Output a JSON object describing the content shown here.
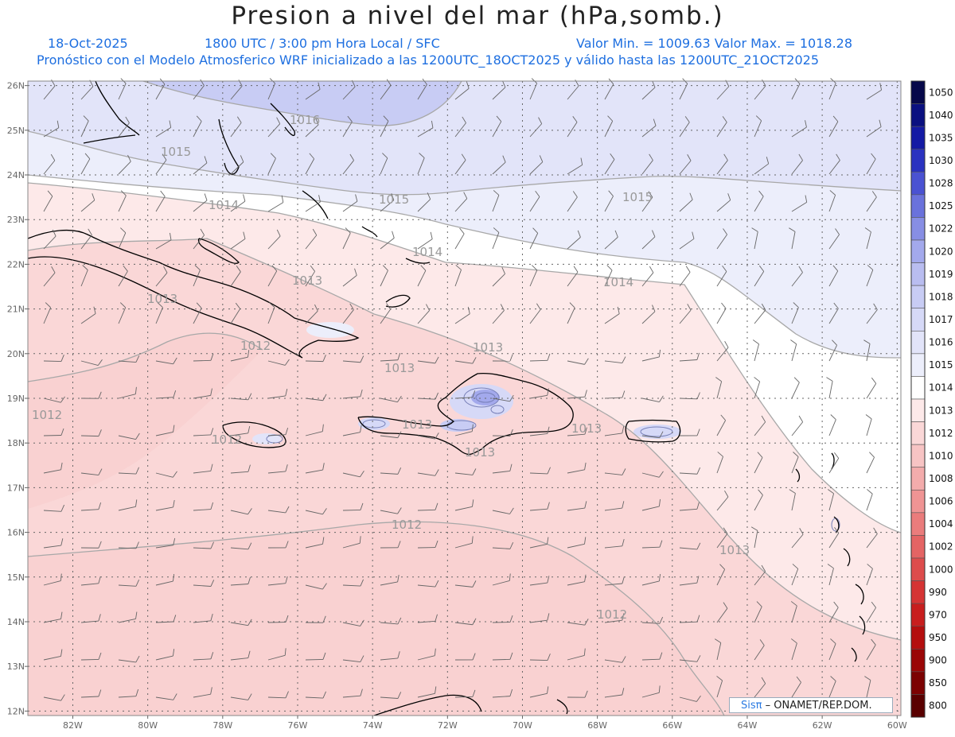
{
  "title": "Presion a nivel del mar (hPa,somb.)",
  "header": {
    "date": "18-Oct-2025",
    "time": "1800 UTC / 3:00 pm Hora Local / SFC",
    "minmax": "Valor Min. = 1009.63  Valor Max. = 1018.28",
    "description": "Pronóstico con el Modelo Atmosferico WRF inicializado a las 1200UTC_18OCT2025 y válido hasta las  1200UTC_21OCT2025"
  },
  "axes": {
    "lat_labels": [
      "26N",
      "25N",
      "24N",
      "23N",
      "22N",
      "21N",
      "20N",
      "19N",
      "18N",
      "17N",
      "16N",
      "15N",
      "14N",
      "13N",
      "12N"
    ],
    "lon_labels": [
      "82W",
      "80W",
      "78W",
      "76W",
      "74W",
      "72W",
      "70W",
      "68W",
      "66W",
      "64W",
      "62W",
      "60W"
    ],
    "lat_values": [
      26,
      25,
      24,
      23,
      22,
      21,
      20,
      19,
      18,
      17,
      16,
      15,
      14,
      13,
      12
    ],
    "lon_values": [
      -82,
      -80,
      -78,
      -76,
      -74,
      -72,
      -70,
      -68,
      -66,
      -64,
      -62,
      -60
    ]
  },
  "colorbar": {
    "levels": [
      "1050",
      "1040",
      "1035",
      "1030",
      "1028",
      "1025",
      "1022",
      "1020",
      "1019",
      "1018",
      "1017",
      "1016",
      "1015",
      "1014",
      "1013",
      "1012",
      "1010",
      "1008",
      "1006",
      "1004",
      "1002",
      "1000",
      "990",
      "970",
      "950",
      "900",
      "850",
      "800"
    ],
    "colors": [
      "#06084a",
      "#0a1080",
      "#141aa4",
      "#2a32c0",
      "#4a52d2",
      "#6a72dc",
      "#878ee4",
      "#a3a9ec",
      "#b9bdf0",
      "#c8ccf4",
      "#d6d9f7",
      "#e2e4f9",
      "#eceefb",
      "#ffffff",
      "#fde9e9",
      "#fad7d7",
      "#f7c4c4",
      "#f3acac",
      "#ef9494",
      "#ea7c7c",
      "#e46464",
      "#dd4c4c",
      "#d53434",
      "#c81e1e",
      "#b40e0e",
      "#9a0606",
      "#7c0202",
      "#5a0000"
    ]
  },
  "contour_labels": [
    "1016",
    "1015",
    "1015",
    "1015",
    "1014",
    "1014",
    "1014",
    "1013",
    "1013",
    "1013",
    "1013",
    "1013",
    "1013",
    "1013",
    "1012",
    "1012",
    "1012",
    "1012",
    "1012",
    "1013"
  ],
  "credit": {
    "brand": "Sisπ",
    "text": "– ONAMET/REP.DOM."
  }
}
